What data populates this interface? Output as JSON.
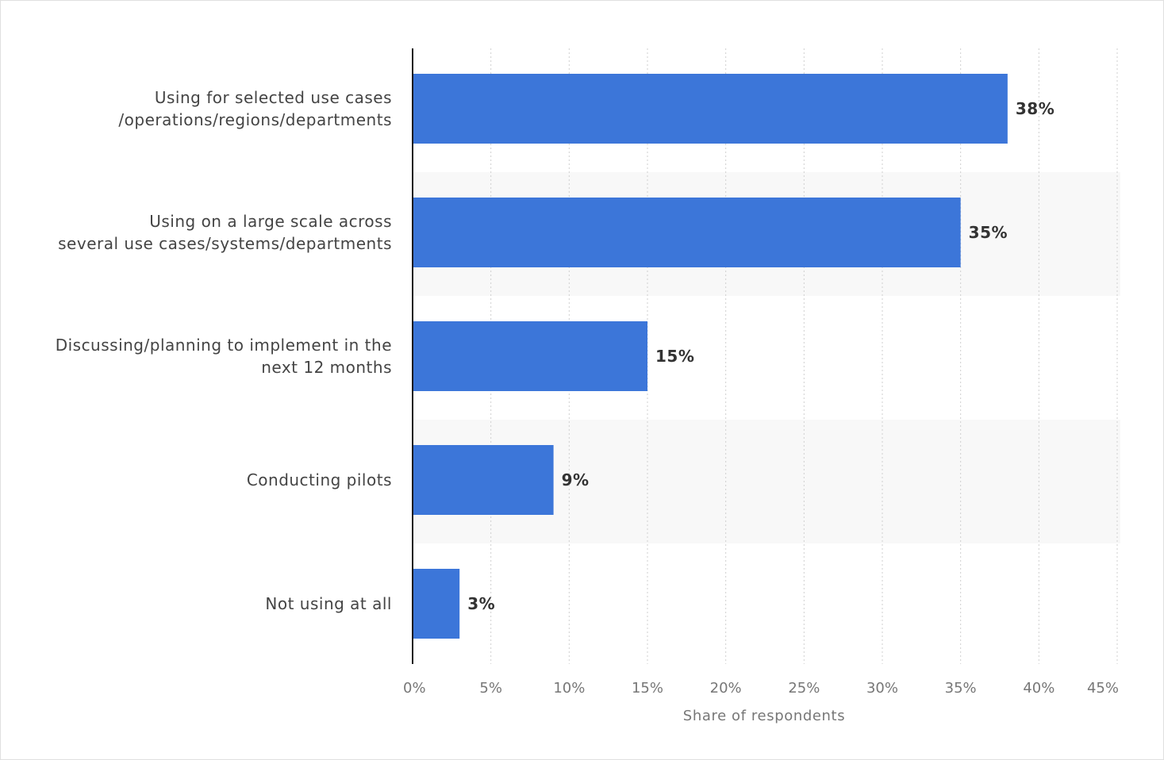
{
  "chart_data": {
    "type": "bar",
    "orientation": "horizontal",
    "categories": [
      [
        "Using for selected use cases",
        "/operations/regions/departments"
      ],
      [
        "Using on a large scale across",
        "several use cases/systems/departments"
      ],
      [
        "Discussing/planning to implement in the",
        "next 12 months"
      ],
      [
        "Conducting pilots"
      ],
      [
        "Not using at all"
      ]
    ],
    "values": [
      38,
      35,
      15,
      9,
      3
    ],
    "value_labels": [
      "38%",
      "35%",
      "15%",
      "9%",
      "3%"
    ],
    "xlim": [
      0,
      45
    ],
    "ticks": [
      0,
      5,
      10,
      15,
      20,
      25,
      30,
      35,
      40,
      45
    ],
    "tick_labels": [
      "0%",
      "5%",
      "10%",
      "15%",
      "20%",
      "25%",
      "30%",
      "35%",
      "40%",
      "45%"
    ],
    "xlabel": "Share of respondents",
    "ylabel": "",
    "grid": true,
    "colors": {
      "bar": "#3c76d9",
      "band": "#f8f8f8",
      "grid": "#cfcfcf",
      "axis": "#1a1a1a"
    }
  }
}
